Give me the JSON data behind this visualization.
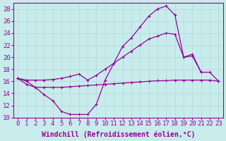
{
  "xlabel": "Windchill (Refroidissement éolien,°C)",
  "bg_color": "#c8ecec",
  "line_color": "#990099",
  "grid_color": "#b0d8d8",
  "ylim": [
    10,
    29
  ],
  "xlim": [
    -0.5,
    23.5
  ],
  "yticks": [
    10,
    12,
    14,
    16,
    18,
    20,
    22,
    24,
    26,
    28
  ],
  "xticks": [
    0,
    1,
    2,
    3,
    4,
    5,
    6,
    7,
    8,
    9,
    10,
    11,
    12,
    13,
    14,
    15,
    16,
    17,
    18,
    19,
    20,
    21,
    22,
    23
  ],
  "lineA_x": [
    0,
    1,
    2,
    3,
    4,
    5,
    6,
    7,
    8,
    9,
    10,
    11,
    12,
    13,
    14,
    15,
    16,
    17,
    18,
    19,
    20,
    21
  ],
  "lineA_y": [
    16.5,
    16.0,
    15.0,
    13.8,
    12.8,
    11.0,
    10.5,
    10.5,
    10.5,
    12.2,
    16.2,
    19.0,
    21.8,
    23.2,
    25.0,
    26.8,
    28.0,
    28.5,
    27.0,
    20.0,
    20.5,
    17.5
  ],
  "lineB_x": [
    0,
    1,
    2,
    3,
    4,
    5,
    6,
    7,
    8,
    9,
    10,
    11,
    12,
    13,
    14,
    15,
    16,
    17,
    18,
    19,
    20,
    21,
    22,
    23
  ],
  "lineB_y": [
    16.5,
    16.2,
    16.2,
    16.2,
    16.3,
    16.5,
    16.8,
    17.2,
    16.2,
    17.0,
    18.0,
    19.0,
    20.0,
    21.0,
    22.0,
    23.0,
    23.5,
    24.0,
    23.8,
    20.0,
    20.2,
    17.5,
    17.5,
    16.0
  ],
  "lineC_x": [
    0,
    1,
    2,
    3,
    4,
    5,
    6,
    7,
    8,
    9,
    10,
    11,
    12,
    13,
    14,
    15,
    16,
    17,
    18,
    19,
    20,
    21,
    22,
    23
  ],
  "lineC_y": [
    16.5,
    15.5,
    15.0,
    15.0,
    15.0,
    15.0,
    15.1,
    15.2,
    15.3,
    15.4,
    15.5,
    15.6,
    15.7,
    15.8,
    15.9,
    16.0,
    16.1,
    16.1,
    16.2,
    16.2,
    16.2,
    16.2,
    16.2,
    16.0
  ],
  "font_family": "monospace",
  "tick_fontsize": 6.5,
  "label_fontsize": 7
}
